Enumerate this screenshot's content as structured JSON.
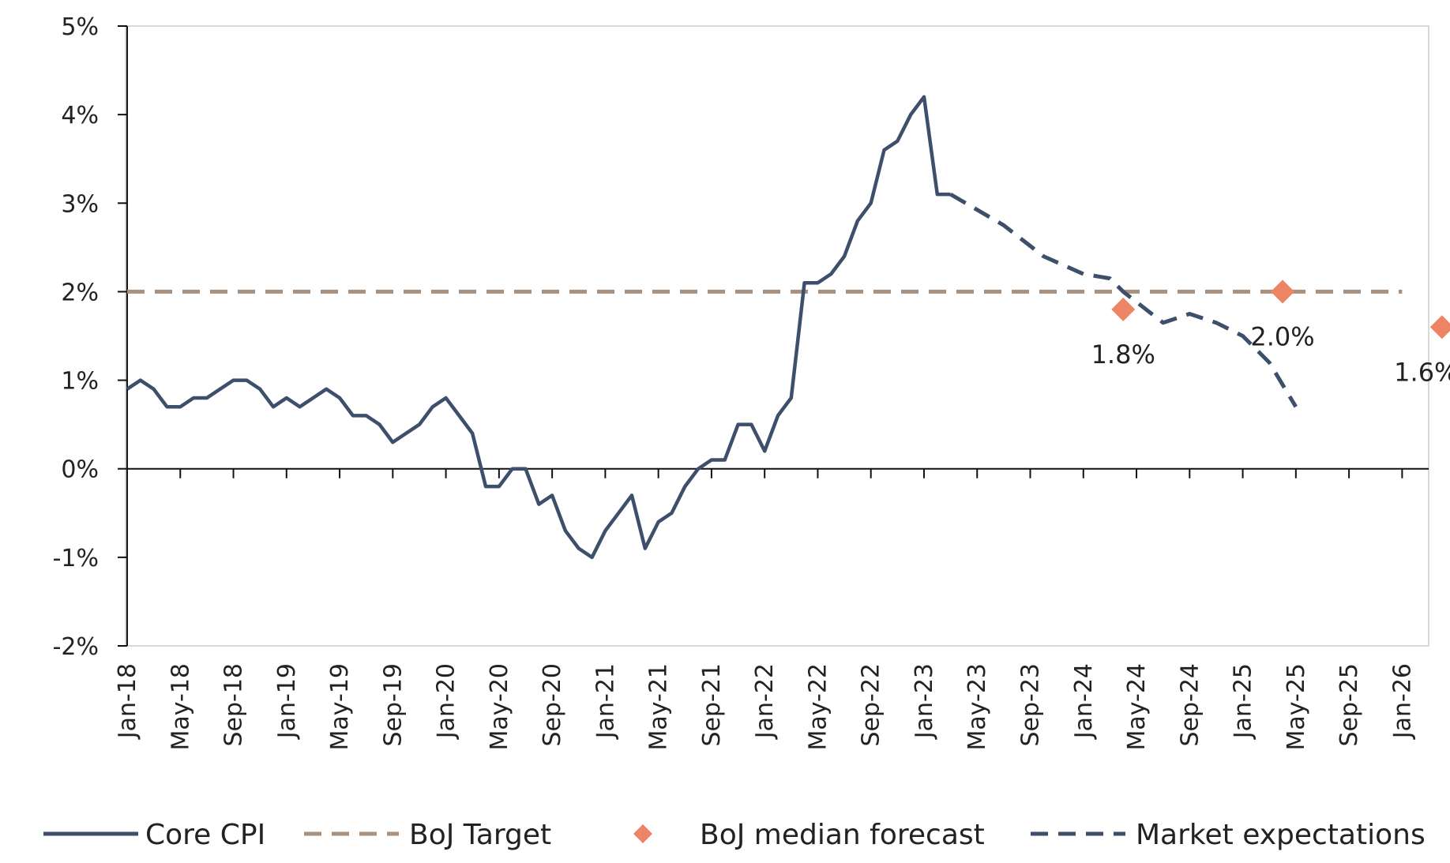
{
  "chart_data": {
    "type": "line",
    "title": "",
    "xlabel": "",
    "ylabel": "",
    "ylim": [
      -2,
      5
    ],
    "yticks": [
      -2,
      -1,
      0,
      1,
      2,
      3,
      4,
      5
    ],
    "ytick_labels": [
      "-2%",
      "-1%",
      "0%",
      "1%",
      "2%",
      "3%",
      "4%",
      "5%"
    ],
    "x_range_months": [
      0,
      98
    ],
    "x_tick_months": [
      0,
      4,
      8,
      12,
      16,
      20,
      24,
      28,
      32,
      36,
      40,
      44,
      48,
      52,
      56,
      60,
      64,
      68,
      72,
      76,
      80,
      84,
      88,
      92,
      96
    ],
    "x_tick_labels": [
      "Jan-18",
      "May-18",
      "Sep-18",
      "Jan-19",
      "May-19",
      "Sep-19",
      "Jan-20",
      "May-20",
      "Sep-20",
      "Jan-21",
      "May-21",
      "Sep-21",
      "Jan-22",
      "May-22",
      "Sep-22",
      "Jan-23",
      "May-23",
      "Sep-23",
      "Jan-24",
      "May-24",
      "Sep-24",
      "Jan-25",
      "May-25",
      "Sep-25",
      "Jan-26"
    ],
    "grid": false,
    "legend_position": "bottom",
    "series": [
      {
        "name": "Core CPI",
        "color": "#3d4f6b",
        "style": "solid",
        "x": [
          0,
          1,
          2,
          3,
          4,
          5,
          6,
          7,
          8,
          9,
          10,
          11,
          12,
          13,
          14,
          15,
          16,
          17,
          18,
          19,
          20,
          21,
          22,
          23,
          24,
          25,
          26,
          27,
          28,
          29,
          30,
          31,
          32,
          33,
          34,
          35,
          36,
          37,
          38,
          39,
          40,
          41,
          42,
          43,
          44,
          45,
          46,
          47,
          48,
          49,
          50,
          51,
          52,
          53,
          54,
          55,
          56,
          57,
          58,
          59,
          60,
          61,
          62
        ],
        "values": [
          0.9,
          1.0,
          0.9,
          0.7,
          0.7,
          0.8,
          0.8,
          0.9,
          1.0,
          1.0,
          0.9,
          0.7,
          0.8,
          0.7,
          0.8,
          0.9,
          0.8,
          0.6,
          0.6,
          0.5,
          0.3,
          0.4,
          0.5,
          0.7,
          0.8,
          0.6,
          0.4,
          -0.2,
          -0.2,
          0.0,
          0.0,
          -0.4,
          -0.3,
          -0.7,
          -0.9,
          -1.0,
          -0.7,
          -0.5,
          -0.3,
          -0.9,
          -0.6,
          -0.5,
          -0.2,
          0.0,
          0.1,
          0.1,
          0.5,
          0.5,
          0.2,
          0.6,
          0.8,
          2.1,
          2.1,
          2.2,
          2.4,
          2.8,
          3.0,
          3.6,
          3.7,
          4.0,
          4.2,
          3.1,
          3.1
        ]
      },
      {
        "name": "BoJ Target",
        "color": "#a8917e",
        "style": "dashed",
        "x": [
          0,
          96
        ],
        "values": [
          2.0,
          2.0
        ]
      },
      {
        "name": "Market expectations",
        "color": "#3d4f6b",
        "style": "dashed",
        "x": [
          62,
          66,
          69,
          72,
          74,
          75,
          78,
          80,
          82,
          84,
          86,
          88
        ],
        "values": [
          3.1,
          2.75,
          2.4,
          2.2,
          2.15,
          2.0,
          1.65,
          1.75,
          1.65,
          1.5,
          1.2,
          0.7
        ]
      }
    ],
    "points": {
      "name": "BoJ median forecast",
      "color": "#ed8466",
      "x": [
        75,
        87,
        99
      ],
      "values": [
        1.8,
        2.0,
        1.6
      ],
      "labels": [
        "1.8%",
        "2.0%",
        "1.6%"
      ]
    },
    "legend": [
      {
        "name": "Core CPI",
        "kind": "solid-line",
        "color": "#3d4f6b"
      },
      {
        "name": "BoJ Target",
        "kind": "dashed-line",
        "color": "#a8917e"
      },
      {
        "name": "BoJ median forecast",
        "kind": "diamond",
        "color": "#ed8466"
      },
      {
        "name": "Market expectations",
        "kind": "dashed-line",
        "color": "#3d4f6b"
      }
    ]
  }
}
